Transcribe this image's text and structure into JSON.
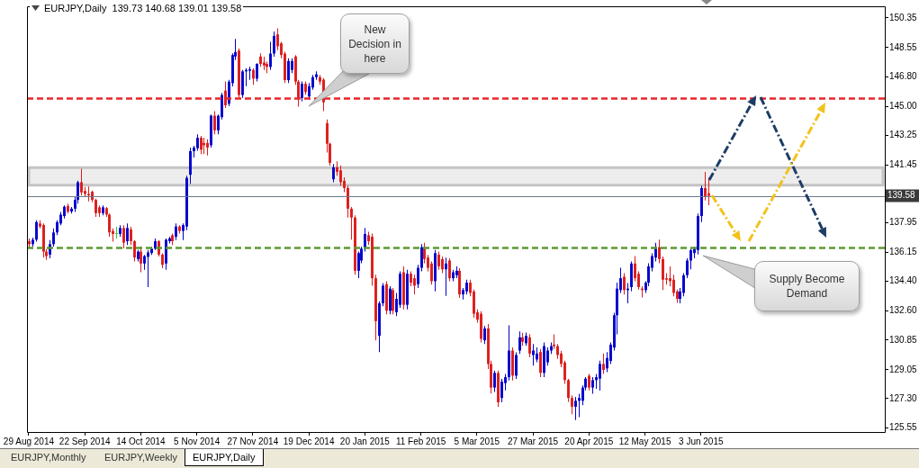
{
  "chart_data": {
    "type": "candlestick",
    "title": "EURJPY,Daily  139.73 140.68 139.01 139.58",
    "categories": [
      "29 Aug 2014",
      null,
      null,
      null,
      null,
      null,
      null,
      null,
      null,
      null,
      null,
      null,
      null,
      null,
      null,
      null,
      "22 Sep 2014",
      null,
      null,
      null,
      null,
      null,
      null,
      null,
      null,
      null,
      null,
      null,
      null,
      null,
      null,
      null,
      "14 Oct 2014",
      null,
      null,
      null,
      null,
      null,
      null,
      null,
      null,
      null,
      null,
      null,
      null,
      null,
      null,
      null,
      "5 Nov 2014",
      null,
      null,
      null,
      null,
      null,
      null,
      null,
      null,
      null,
      null,
      null,
      null,
      null,
      null,
      null,
      "27 Nov 2014",
      null,
      null,
      null,
      null,
      null,
      null,
      null,
      null,
      null,
      null,
      null,
      null,
      null,
      null,
      null,
      "19 Dec 2014",
      null,
      null,
      null,
      null,
      null,
      null,
      null,
      null,
      null,
      null,
      null,
      null,
      null,
      null,
      null,
      "20 Jan 2015",
      null,
      null,
      null,
      null,
      null,
      null,
      null,
      null,
      null,
      null,
      null,
      null,
      null,
      null,
      null,
      "11 Feb 2015",
      null,
      null,
      null,
      null,
      null,
      null,
      null,
      null,
      null,
      null,
      null,
      null,
      null,
      null,
      null,
      "5 Mar 2015",
      null,
      null,
      null,
      null,
      null,
      null,
      null,
      null,
      null,
      null,
      null,
      null,
      null,
      null,
      null,
      "27 Mar 2015",
      null,
      null,
      null,
      null,
      null,
      null,
      null,
      null,
      null,
      null,
      null,
      null,
      null,
      null,
      null,
      "20 Apr 2015",
      null,
      null,
      null,
      null,
      null,
      null,
      null,
      null,
      null,
      null,
      null,
      null,
      null,
      null,
      null,
      "12 May 2015",
      null,
      null,
      null,
      null,
      null,
      null,
      null,
      null,
      null,
      null,
      null,
      null,
      null,
      null,
      null,
      "3 Jun 2015",
      null,
      null,
      null,
      null,
      null,
      null,
      null,
      null,
      null,
      null,
      null,
      null,
      null,
      null,
      null,
      null,
      null,
      null,
      null,
      null,
      null,
      null,
      null,
      null,
      null,
      null,
      null,
      null,
      null,
      null,
      null,
      null,
      null,
      null,
      null,
      null,
      null,
      null,
      null,
      null,
      null,
      null,
      null,
      null,
      null,
      null,
      null,
      null,
      null,
      null,
      null,
      null
    ],
    "ohlc": [
      [
        136.83,
        137.0,
        136.4,
        136.65
      ],
      [
        136.65,
        137.05,
        136.5,
        136.92
      ],
      [
        136.92,
        138.1,
        136.8,
        137.99
      ],
      [
        137.9,
        138.1,
        137.6,
        137.72
      ],
      [
        137.81,
        137.9,
        135.84,
        136.2
      ],
      [
        136.2,
        136.35,
        135.7,
        135.93
      ],
      [
        136.02,
        136.9,
        135.8,
        136.65
      ],
      [
        136.65,
        137.6,
        136.5,
        137.36
      ],
      [
        137.36,
        138.1,
        137.2,
        137.99
      ],
      [
        137.9,
        138.6,
        137.8,
        138.44
      ],
      [
        138.35,
        139.0,
        138.2,
        138.92
      ],
      [
        138.97,
        139.1,
        138.5,
        138.62
      ],
      [
        138.62,
        138.9,
        138.5,
        138.8
      ],
      [
        138.8,
        139.5,
        138.6,
        139.33
      ],
      [
        139.33,
        140.5,
        139.1,
        140.4
      ],
      [
        140.4,
        141.21,
        139.6,
        139.78
      ],
      [
        139.87,
        140.1,
        139.5,
        139.69
      ],
      [
        139.69,
        140.14,
        139.24,
        139.6
      ],
      [
        139.82,
        139.9,
        139.2,
        139.33
      ],
      [
        139.33,
        139.4,
        138.3,
        138.53
      ],
      [
        138.88,
        139.0,
        138.3,
        138.53
      ],
      [
        138.53,
        139.0,
        138.4,
        138.88
      ],
      [
        138.83,
        138.9,
        138.3,
        138.44
      ],
      [
        138.44,
        138.5,
        137.1,
        137.36
      ],
      [
        137.45,
        137.6,
        136.8,
        137.27
      ],
      [
        137.32,
        137.7,
        137.0,
        137.32
      ],
      [
        137.27,
        137.8,
        137.1,
        137.63
      ],
      [
        137.63,
        137.8,
        136.4,
        136.74
      ],
      [
        136.83,
        137.9,
        136.6,
        137.63
      ],
      [
        137.54,
        137.7,
        136.6,
        136.83
      ],
      [
        136.83,
        136.9,
        135.6,
        135.84
      ],
      [
        135.75,
        136.3,
        135.6,
        136.2
      ],
      [
        136.2,
        136.5,
        134.95,
        135.48
      ],
      [
        135.48,
        136.0,
        135.1,
        135.93
      ],
      [
        135.88,
        136.3,
        134.05,
        136.15
      ],
      [
        136.11,
        136.5,
        136.0,
        136.38
      ],
      [
        136.38,
        137.0,
        136.3,
        136.83
      ],
      [
        136.83,
        136.9,
        135.9,
        136.02
      ],
      [
        136.02,
        136.1,
        135.2,
        135.4
      ],
      [
        135.48,
        137.0,
        135.1,
        136.92
      ],
      [
        136.83,
        137.1,
        136.7,
        137.01
      ],
      [
        137.19,
        137.3,
        136.6,
        136.83
      ],
      [
        137.1,
        137.9,
        136.9,
        137.72
      ],
      [
        137.72,
        137.8,
        137.3,
        137.45
      ],
      [
        137.45,
        137.9,
        136.9,
        137.81
      ],
      [
        137.72,
        140.8,
        137.5,
        140.67
      ],
      [
        140.85,
        142.5,
        140.31,
        142.28
      ],
      [
        142.28,
        142.6,
        141.9,
        142.5
      ],
      [
        142.46,
        143.3,
        142.3,
        143.09
      ],
      [
        143.09,
        143.2,
        142.1,
        142.37
      ],
      [
        142.78,
        143.1,
        142.1,
        142.64
      ],
      [
        142.78,
        143.0,
        142.02,
        142.5
      ],
      [
        142.64,
        144.5,
        142.5,
        144.43
      ],
      [
        144.43,
        144.7,
        143.3,
        143.54
      ],
      [
        143.54,
        144.5,
        143.3,
        144.43
      ],
      [
        144.34,
        145.8,
        144.2,
        145.68
      ],
      [
        145.95,
        146.5,
        144.9,
        145.06
      ],
      [
        145.15,
        146.6,
        145.0,
        146.49
      ],
      [
        146.4,
        148.2,
        146.2,
        148.1
      ],
      [
        148.01,
        149.08,
        147.8,
        148.28
      ],
      [
        148.37,
        148.5,
        145.5,
        145.68
      ],
      [
        145.68,
        147.2,
        145.5,
        147.11
      ],
      [
        147.11,
        147.3,
        146.22,
        147.2
      ],
      [
        147.15,
        147.4,
        146.6,
        147.24
      ],
      [
        147.2,
        147.3,
        146.3,
        146.67
      ],
      [
        146.67,
        147.6,
        146.5,
        147.56
      ],
      [
        148.01,
        148.2,
        147.4,
        147.56
      ],
      [
        147.65,
        148.0,
        147.2,
        147.47
      ],
      [
        147.56,
        147.7,
        147.0,
        147.38
      ],
      [
        147.38,
        148.9,
        147.2,
        148.19
      ],
      [
        148.19,
        149.53,
        148.0,
        149.26
      ],
      [
        149.35,
        149.71,
        148.4,
        148.63
      ],
      [
        148.81,
        148.9,
        147.9,
        148.1
      ],
      [
        148.19,
        148.3,
        146.4,
        146.58
      ],
      [
        146.58,
        147.9,
        146.4,
        147.74
      ],
      [
        147.2,
        147.9,
        147.0,
        147.74
      ],
      [
        148.01,
        148.1,
        146.3,
        146.49
      ],
      [
        146.49,
        146.6,
        144.97,
        145.5
      ],
      [
        145.5,
        146.5,
        145.3,
        146.36
      ],
      [
        146.36,
        146.5,
        145.7,
        145.86
      ],
      [
        145.59,
        146.4,
        145.4,
        146.22
      ],
      [
        146.13,
        146.9,
        146.0,
        146.76
      ],
      [
        146.76,
        147.11,
        146.6,
        146.93
      ],
      [
        146.76,
        146.9,
        146.3,
        146.49
      ],
      [
        146.61,
        146.7,
        144.7,
        145.24
      ],
      [
        143.98,
        144.2,
        142.2,
        142.73
      ],
      [
        142.73,
        142.8,
        141.4,
        141.57
      ],
      [
        140.58,
        141.5,
        140.4,
        141.3
      ],
      [
        141.3,
        141.66,
        140.8,
        141.03
      ],
      [
        141.12,
        141.4,
        140.2,
        140.4
      ],
      [
        140.49,
        140.7,
        139.8,
        140.05
      ],
      [
        140.05,
        140.2,
        138.26,
        138.8
      ],
      [
        138.8,
        138.9,
        136.92,
        138.26
      ],
      [
        138.26,
        138.4,
        134.8,
        135.04
      ],
      [
        135.04,
        136.2,
        134.59,
        136.11
      ],
      [
        135.66,
        136.5,
        135.5,
        136.38
      ],
      [
        136.38,
        137.63,
        136.2,
        137.27
      ],
      [
        137.19,
        137.4,
        136.6,
        136.83
      ],
      [
        137.1,
        137.3,
        134.14,
        134.59
      ],
      [
        134.59,
        134.8,
        130.83,
        131.99
      ],
      [
        131.1,
        133.2,
        130.12,
        133.07
      ],
      [
        133.07,
        134.3,
        132.9,
        134.14
      ],
      [
        134.23,
        134.4,
        132.4,
        132.62
      ],
      [
        132.62,
        134.1,
        132.4,
        133.96
      ],
      [
        133.87,
        134.0,
        132.4,
        132.62
      ],
      [
        132.53,
        133.7,
        132.3,
        133.34
      ],
      [
        132.98,
        135.0,
        132.8,
        134.86
      ],
      [
        134.95,
        135.31,
        132.7,
        132.98
      ],
      [
        132.98,
        135.1,
        132.7,
        134.86
      ],
      [
        134.86,
        135.0,
        134.1,
        134.32
      ],
      [
        134.59,
        134.8,
        133.61,
        134.14
      ],
      [
        134.23,
        135.4,
        134.0,
        135.22
      ],
      [
        135.22,
        136.65,
        135.0,
        136.47
      ],
      [
        136.47,
        136.74,
        135.5,
        135.75
      ],
      [
        135.84,
        136.0,
        135.0,
        135.22
      ],
      [
        135.48,
        135.6,
        134.2,
        134.41
      ],
      [
        134.41,
        136.3,
        133.79,
        136.11
      ],
      [
        136.02,
        136.2,
        135.1,
        135.31
      ],
      [
        135.75,
        135.9,
        134.9,
        135.13
      ],
      [
        135.13,
        135.84,
        133.52,
        135.48
      ],
      [
        135.66,
        135.8,
        134.4,
        134.59
      ],
      [
        134.59,
        135.1,
        134.4,
        134.95
      ],
      [
        134.77,
        135.31,
        134.6,
        135.04
      ],
      [
        135.04,
        135.2,
        133.4,
        133.61
      ],
      [
        133.61,
        134.0,
        133.3,
        133.87
      ],
      [
        133.79,
        134.5,
        133.6,
        134.32
      ],
      [
        134.32,
        134.5,
        133.5,
        133.7
      ],
      [
        133.79,
        133.9,
        132.2,
        132.44
      ],
      [
        132.53,
        132.7,
        131.9,
        132.08
      ],
      [
        132.44,
        132.6,
        130.7,
        130.92
      ],
      [
        130.83,
        131.7,
        130.6,
        131.55
      ],
      [
        131.55,
        131.82,
        129.1,
        129.4
      ],
      [
        129.4,
        129.6,
        127.61,
        127.97
      ],
      [
        127.97,
        129.0,
        127.7,
        128.86
      ],
      [
        128.86,
        129.0,
        126.81,
        127.08
      ],
      [
        127.34,
        128.5,
        127.08,
        128.33
      ],
      [
        128.24,
        128.8,
        127.8,
        128.6
      ],
      [
        128.6,
        131.73,
        128.4,
        130.21
      ],
      [
        130.21,
        130.4,
        128.4,
        128.69
      ],
      [
        128.69,
        130.1,
        128.5,
        129.94
      ],
      [
        130.21,
        131.37,
        130.0,
        131.01
      ],
      [
        131.01,
        131.28,
        130.5,
        130.74
      ],
      [
        130.65,
        131.3,
        130.5,
        131.1
      ],
      [
        131.01,
        131.2,
        129.8,
        130.03
      ],
      [
        129.94,
        130.6,
        129.3,
        130.21
      ],
      [
        129.67,
        130.4,
        129.5,
        130.03
      ],
      [
        130.12,
        130.3,
        128.6,
        128.86
      ],
      [
        128.86,
        130.7,
        128.6,
        130.48
      ],
      [
        129.5,
        130.4,
        129.3,
        130.21
      ],
      [
        130.21,
        130.7,
        130.0,
        130.48
      ],
      [
        130.57,
        131.19,
        130.3,
        130.48
      ],
      [
        130.48,
        130.6,
        129.7,
        129.94
      ],
      [
        130.03,
        130.2,
        129.2,
        129.4
      ],
      [
        129.49,
        129.6,
        128.2,
        128.42
      ],
      [
        128.42,
        128.5,
        127.1,
        127.34
      ],
      [
        127.34,
        127.5,
        126.36,
        126.81
      ],
      [
        126.81,
        127.4,
        126.0,
        127.17
      ],
      [
        127.17,
        127.6,
        126.18,
        127.34
      ],
      [
        127.17,
        128.1,
        126.9,
        127.97
      ],
      [
        127.97,
        128.6,
        127.8,
        128.51
      ],
      [
        128.69,
        128.8,
        127.8,
        127.97
      ],
      [
        127.97,
        128.6,
        127.6,
        128.42
      ],
      [
        128.42,
        128.8,
        127.9,
        128.6
      ],
      [
        128.51,
        129.6,
        127.79,
        129.4
      ],
      [
        129.4,
        130.03,
        128.8,
        129.04
      ],
      [
        129.13,
        130.12,
        128.9,
        129.76
      ],
      [
        129.58,
        130.7,
        129.4,
        130.57
      ],
      [
        130.39,
        132.5,
        130.21,
        132.35
      ],
      [
        132.35,
        134.32,
        131.19,
        133.96
      ],
      [
        133.87,
        135.22,
        133.7,
        134.59
      ],
      [
        134.68,
        134.9,
        133.6,
        133.87
      ],
      [
        133.87,
        134.3,
        133.07,
        133.96
      ],
      [
        134.05,
        135.6,
        133.8,
        135.48
      ],
      [
        135.48,
        135.93,
        134.4,
        134.59
      ],
      [
        134.86,
        135.0,
        133.9,
        134.05
      ],
      [
        133.96,
        134.1,
        133.43,
        133.87
      ],
      [
        133.87,
        134.4,
        133.7,
        134.32
      ],
      [
        134.32,
        135.5,
        134.1,
        135.31
      ],
      [
        135.22,
        136.1,
        135.0,
        135.93
      ],
      [
        135.84,
        136.74,
        135.6,
        136.47
      ],
      [
        136.47,
        136.92,
        135.5,
        135.75
      ],
      [
        135.75,
        135.9,
        133.87,
        134.5
      ],
      [
        134.59,
        134.9,
        134.2,
        134.5
      ],
      [
        134.59,
        135.31,
        134.1,
        134.41
      ],
      [
        134.5,
        134.8,
        133.5,
        133.7
      ],
      [
        133.79,
        133.9,
        133.1,
        133.34
      ],
      [
        133.34,
        134.0,
        133.07,
        133.79
      ],
      [
        133.7,
        134.9,
        133.5,
        134.77
      ],
      [
        134.77,
        135.8,
        134.6,
        135.66
      ],
      [
        135.66,
        136.4,
        135.13,
        136.29
      ],
      [
        136.11,
        136.5,
        135.8,
        136.38
      ],
      [
        136.29,
        138.5,
        136.02,
        138.35
      ],
      [
        138.35,
        140.2,
        137.99,
        140.05
      ],
      [
        140.05,
        141.03,
        139.3,
        139.51
      ],
      [
        139.73,
        140.68,
        139.01,
        139.58
      ],
      null,
      null,
      null,
      null,
      null,
      null,
      null,
      null,
      null,
      null,
      null,
      null,
      null,
      null,
      null,
      null,
      null,
      null,
      null,
      null,
      null,
      null,
      null,
      null,
      null,
      null,
      null,
      null,
      null,
      null,
      null,
      null,
      null,
      null,
      null,
      null,
      null,
      null,
      null,
      null,
      null,
      null,
      null,
      null,
      null,
      null,
      null,
      null,
      null,
      null
    ],
    "colors": [
      "#dd1c1c",
      "#0000cc",
      "#0000cc",
      "#dd1c1c",
      "#dd1c1c",
      "#dd1c1c",
      "#0000cc",
      "#0000cc",
      "#0000cc",
      "#0000cc",
      "#0000cc",
      "#dd1c1c",
      "#0000cc",
      "#0000cc",
      "#0000cc",
      "#dd1c1c",
      "#dd1c1c",
      "#dd1c1c",
      "#dd1c1c",
      "#dd1c1c",
      "#dd1c1c",
      "#0000cc",
      "#dd1c1c",
      "#dd1c1c",
      "#dd1c1c",
      "#33cc33",
      "#0000cc",
      "#dd1c1c",
      "#0000cc",
      "#dd1c1c",
      "#dd1c1c",
      "#0000cc",
      "#dd1c1c",
      "#0000cc",
      "#0000cc",
      "#0000cc",
      "#0000cc",
      "#dd1c1c",
      "#dd1c1c",
      "#0000cc",
      "#0000cc",
      "#dd1c1c",
      "#0000cc",
      "#dd1c1c",
      "#0000cc",
      "#0000cc",
      "#0000cc",
      "#0000cc",
      "#0000cc",
      "#dd1c1c",
      "#dd1c1c",
      "#dd1c1c",
      "#0000cc",
      "#dd1c1c",
      "#0000cc",
      "#0000cc",
      "#dd1c1c",
      "#0000cc",
      "#0000cc",
      "#0000cc",
      "#dd1c1c",
      "#0000cc",
      "#0000cc",
      "#0000cc",
      "#dd1c1c",
      "#0000cc",
      "#dd1c1c",
      "#dd1c1c",
      "#dd1c1c",
      "#0000cc",
      "#0000cc",
      "#dd1c1c",
      "#dd1c1c",
      "#dd1c1c",
      "#0000cc",
      "#0000cc",
      "#dd1c1c",
      "#dd1c1c",
      "#0000cc",
      "#dd1c1c",
      "#0000cc",
      "#0000cc",
      "#0000cc",
      "#dd1c1c",
      "#dd1c1c",
      "#dd1c1c",
      "#dd1c1c",
      "#0000cc",
      "#dd1c1c",
      "#dd1c1c",
      "#dd1c1c",
      "#dd1c1c",
      "#dd1c1c",
      "#dd1c1c",
      "#0000cc",
      "#0000cc",
      "#0000cc",
      "#dd1c1c",
      "#dd1c1c",
      "#dd1c1c",
      "#0000cc",
      "#0000cc",
      "#dd1c1c",
      "#0000cc",
      "#dd1c1c",
      "#0000cc",
      "#0000cc",
      "#dd1c1c",
      "#0000cc",
      "#dd1c1c",
      "#dd1c1c",
      "#0000cc",
      "#0000cc",
      "#dd1c1c",
      "#dd1c1c",
      "#dd1c1c",
      "#0000cc",
      "#dd1c1c",
      "#dd1c1c",
      "#0000cc",
      "#dd1c1c",
      "#0000cc",
      "#0000cc",
      "#dd1c1c",
      "#0000cc",
      "#0000cc",
      "#dd1c1c",
      "#dd1c1c",
      "#dd1c1c",
      "#dd1c1c",
      "#0000cc",
      "#dd1c1c",
      "#dd1c1c",
      "#0000cc",
      "#dd1c1c",
      "#0000cc",
      "#0000cc",
      "#0000cc",
      "#dd1c1c",
      "#0000cc",
      "#0000cc",
      "#dd1c1c",
      "#0000cc",
      "#dd1c1c",
      "#0000cc",
      "#0000cc",
      "#dd1c1c",
      "#0000cc",
      "#0000cc",
      "#0000cc",
      "#dd1c1c",
      "#dd1c1c",
      "#dd1c1c",
      "#dd1c1c",
      "#dd1c1c",
      "#dd1c1c",
      "#0000cc",
      "#0000cc",
      "#0000cc",
      "#0000cc",
      "#dd1c1c",
      "#0000cc",
      "#0000cc",
      "#0000cc",
      "#dd1c1c",
      "#0000cc",
      "#0000cc",
      "#0000cc",
      "#0000cc",
      "#0000cc",
      "#dd1c1c",
      "#0000cc",
      "#0000cc",
      "#dd1c1c",
      "#dd1c1c",
      "#dd1c1c",
      "#0000cc",
      "#0000cc",
      "#0000cc",
      "#0000cc",
      "#dd1c1c",
      "#dd1c1c",
      "#dd1c1c",
      "#dd1c1c",
      "#dd1c1c",
      "#dd1c1c",
      "#0000cc",
      "#0000cc",
      "#0000cc",
      "#0000cc",
      "#0000cc",
      "#0000cc",
      "#0000cc",
      "#dd1c1c",
      "#dd1c1c",
      null,
      null,
      null,
      null,
      null,
      null,
      null,
      null,
      null,
      null,
      null,
      null,
      null,
      null,
      null,
      null,
      null,
      null,
      null,
      null,
      null,
      null,
      null,
      null,
      null,
      null,
      null,
      null,
      null,
      null,
      null,
      null,
      null,
      null,
      null,
      null,
      null,
      null,
      null,
      null,
      null,
      null,
      null,
      null,
      null,
      null,
      null,
      null,
      null,
      null
    ],
    "ylim": [
      125.28,
      151.05
    ],
    "yticks": [
      125.55,
      {
        "value": 127.3,
        "label": "127.30"
      },
      129.05,
      130.85,
      {
        "value": 132.6,
        "label": "132.60"
      },
      {
        "value": 134.4,
        "label": "134.40"
      },
      136.15,
      137.95,
      141.45,
      143.25,
      {
        "value": 145.0,
        "label": "145.00"
      },
      {
        "value": 146.8,
        "label": "146.80"
      },
      148.55,
      150.35
    ],
    "ref_lines": [
      {
        "axis": "y",
        "value": 145.52,
        "color": "#e8262b",
        "line_style": "dashed"
      },
      {
        "axis": "y",
        "value": 136.46,
        "color": "#5b9a31",
        "line_style": "dashed"
      },
      {
        "axis": "y",
        "value": 139.58,
        "label": "139.58",
        "color": "#6b7a8c",
        "line_style": "solid"
      }
    ],
    "bands": [
      {
        "axis": "y",
        "from": 140.22,
        "to": 141.29,
        "color": "#c4c4c4"
      }
    ],
    "annotations": [
      "New Decision in here",
      "Supply Become Demand",
      "EURJPY,Monthly",
      "EURJPY,Weekly",
      "EURJPY,Daily"
    ]
  }
}
